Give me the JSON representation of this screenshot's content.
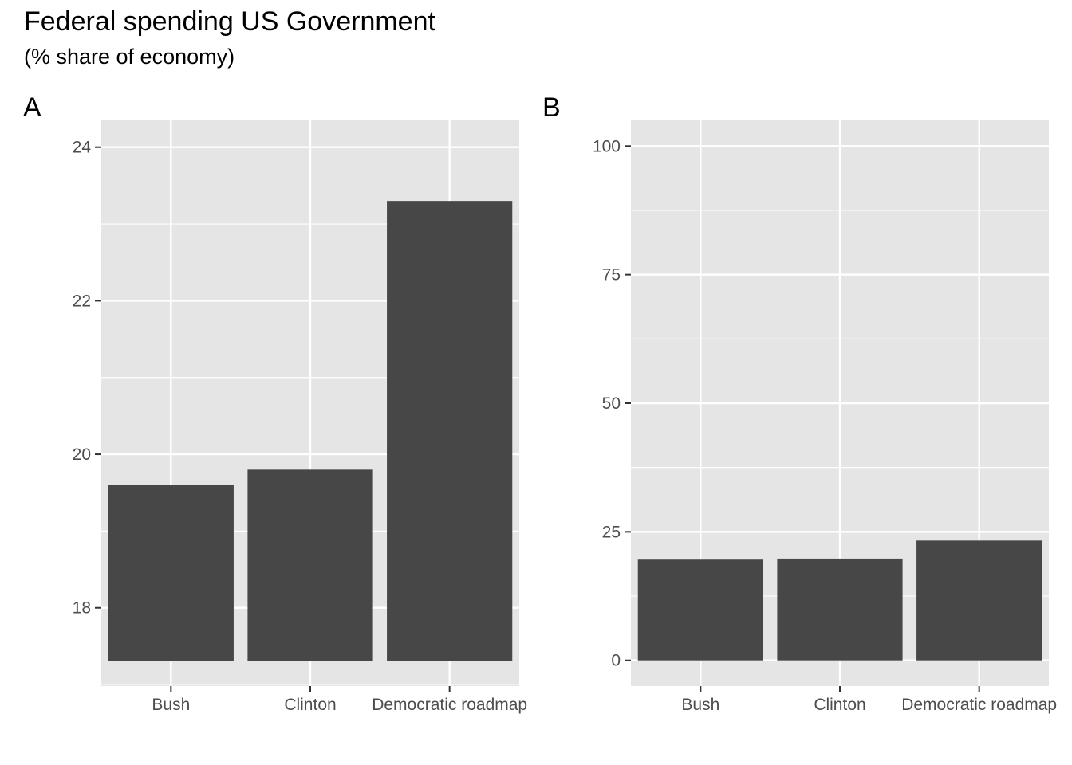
{
  "title": "Federal spending US Government",
  "subtitle": "(% share of economy)",
  "chart_data": [
    {
      "type": "bar",
      "panel": "A",
      "categories": [
        "Bush",
        "Clinton",
        "Democratic roadmap"
      ],
      "values": [
        19.6,
        19.8,
        23.3
      ],
      "ylim": [
        16.98,
        24.35
      ],
      "yticks": [
        18,
        20,
        22,
        24
      ],
      "ytick_labels": [
        "18",
        "20",
        "22",
        "24"
      ],
      "xlabel": "",
      "ylabel": "",
      "grid": true,
      "colors": {
        "bar": "#474747",
        "panel": "#e5e5e5",
        "grid": "#ffffff"
      }
    },
    {
      "type": "bar",
      "panel": "B",
      "categories": [
        "Bush",
        "Clinton",
        "Democratic roadmap"
      ],
      "values": [
        19.6,
        19.8,
        23.3
      ],
      "ylim": [
        -5,
        105
      ],
      "yticks": [
        0,
        25,
        50,
        75,
        100
      ],
      "ytick_labels": [
        "0",
        "25",
        "50",
        "75",
        "100"
      ],
      "xlabel": "",
      "ylabel": "",
      "grid": true,
      "colors": {
        "bar": "#474747",
        "panel": "#e5e5e5",
        "grid": "#ffffff"
      }
    }
  ]
}
